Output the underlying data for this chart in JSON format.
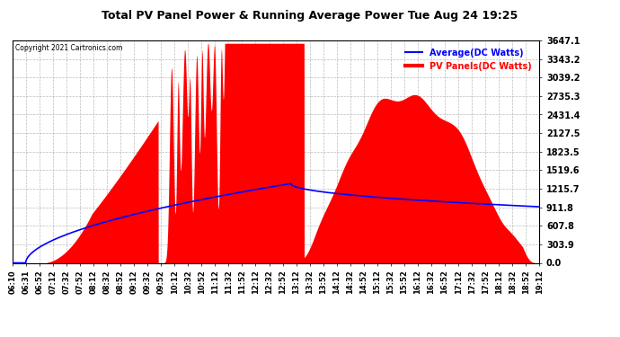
{
  "title": "Total PV Panel Power & Running Average Power Tue Aug 24 19:25",
  "copyright": "Copyright 2021 Cartronics.com",
  "legend_avg": "Average(DC Watts)",
  "legend_pv": "PV Panels(DC Watts)",
  "avg_color": "#0000FF",
  "pv_color": "#FF0000",
  "bg_color": "#FFFFFF",
  "grid_color": "#AAAAAA",
  "title_color": "#000000",
  "copyright_color": "#000000",
  "yticks": [
    0.0,
    303.9,
    607.8,
    911.8,
    1215.7,
    1519.6,
    1823.5,
    2127.5,
    2431.4,
    2735.3,
    3039.2,
    3343.2,
    3647.1
  ],
  "ymax": 3647.1,
  "ymin": 0.0,
  "xtick_labels": [
    "06:10",
    "06:31",
    "06:52",
    "07:12",
    "07:32",
    "07:52",
    "08:12",
    "08:32",
    "08:52",
    "09:12",
    "09:32",
    "09:52",
    "10:12",
    "10:32",
    "10:52",
    "11:12",
    "11:32",
    "11:52",
    "12:12",
    "12:32",
    "12:52",
    "13:12",
    "13:32",
    "13:52",
    "14:12",
    "14:32",
    "14:52",
    "15:12",
    "15:32",
    "15:52",
    "16:12",
    "16:32",
    "16:52",
    "17:12",
    "17:32",
    "17:52",
    "18:12",
    "18:32",
    "18:52",
    "19:12"
  ]
}
